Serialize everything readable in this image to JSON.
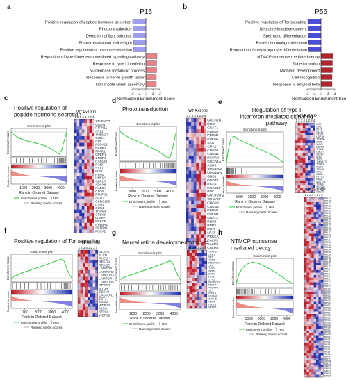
{
  "panels": [
    {
      "letter": "a"
    },
    {
      "letter": "b"
    },
    {
      "letter": "c"
    },
    {
      "letter": "d"
    },
    {
      "letter": "e"
    },
    {
      "letter": "f"
    },
    {
      "letter": "g"
    },
    {
      "letter": "h"
    }
  ],
  "colors": {
    "neg_bar": "#9f9ff0",
    "neg_bar_b": "#4a4fd6",
    "pos_bar": "#e8838a",
    "pos_bar_b": "#b3242c",
    "es_line": "#2ecc40",
    "heat_red": "#c01f2a",
    "heat_blue": "#2434b0",
    "heat_white": "#f2dfe6",
    "metric_pos": "#e77a6e",
    "metric_neg": "#6a6ad8"
  },
  "chart_data": [
    {
      "panel": "a",
      "type": "bar",
      "orientation": "horizontal",
      "title": "P15",
      "xlabel": "Normalized Enrichment Score",
      "xlim": [
        -2,
        2
      ],
      "xticks": [
        -2,
        -1,
        0,
        1,
        2
      ],
      "categories": [
        "Positive regulation of peptide hormone secretion",
        "Phototransduction",
        "Detection of light stimulus",
        "Phototransduction visible light",
        "Positive regulation of hormone secretion",
        "Regulation of type I interferon mediated signaling pathway",
        "Response to type I interferon",
        "Nucleobase metabolic process",
        "Response to nerve growth factor",
        "Non motile cilium assembly"
      ],
      "values": [
        -1.9,
        -1.85,
        -1.85,
        -1.8,
        -1.8,
        1.6,
        1.55,
        1.55,
        1.5,
        1.5
      ]
    },
    {
      "panel": "b",
      "type": "bar",
      "orientation": "horizontal",
      "title": "P56",
      "xlabel": "Normalized Enrichment Score",
      "xlim": [
        -2,
        2
      ],
      "xticks": [
        -2,
        -1,
        0,
        1,
        2
      ],
      "categories": [
        "Positive regulation of Tor signaling",
        "Neural retina development",
        "Spermatid differentiation",
        "Protein homooligomerization",
        "Regulation of megakaryocyte differentiation",
        "NTMCP nonsense mediated decay",
        "Tube formation",
        "Midbrain development",
        "Cell recognition",
        "Response to amyloid beta"
      ],
      "values": [
        -1.9,
        -1.85,
        -1.85,
        -1.8,
        -1.8,
        1.7,
        1.65,
        1.65,
        1.6,
        1.6
      ]
    },
    {
      "panel": "c",
      "type": "line",
      "title": "Positive regulation of peptide hormone secretion",
      "plot_title": "Enrichment plot",
      "ylabel_top": "Enrichment Score",
      "ylabel_bottom": "Ranked list metric",
      "xlabel": "Rank in Ordered Dataset",
      "xticks": [
        1000,
        2000,
        3000,
        4000
      ],
      "xlim": [
        0,
        4500
      ],
      "ylim": [
        -0.7,
        0.1
      ],
      "shape": "neg",
      "es_curve": [
        [
          0,
          0
        ],
        [
          300,
          -0.1
        ],
        [
          700,
          -0.18
        ],
        [
          1200,
          -0.25
        ],
        [
          1800,
          -0.3
        ],
        [
          2400,
          -0.36
        ],
        [
          2900,
          -0.42
        ],
        [
          3300,
          -0.5
        ],
        [
          3700,
          -0.6
        ],
        [
          3900,
          -0.64
        ],
        [
          4100,
          -0.52
        ],
        [
          4300,
          -0.25
        ],
        [
          4500,
          0
        ]
      ],
      "hits": [
        150,
        420,
        760,
        980,
        1210,
        1480,
        1700,
        1950,
        2200,
        2440,
        2650,
        2860,
        3050,
        3230,
        3390,
        3520,
        3630,
        3730,
        3820,
        3900,
        3960,
        4020,
        4080,
        4140,
        4200,
        4260,
        4330,
        4400
      ],
      "legend": [
        "Enrichment profile",
        "Hits",
        "Ranking metric scores"
      ],
      "heatmap": {
        "groups": [
          "WT",
          "Rx1 KO"
        ],
        "sample_numbers": [
          "1",
          "2",
          "3",
          "4",
          "1",
          "2",
          "3",
          "4"
        ],
        "genes": [
          "SELENOT",
          "GATA1",
          "PTPN11",
          "ARL2",
          "TMEM27",
          "CHGA",
          "GIP",
          "ABCA12",
          "NADK2",
          "FFAR1",
          "GPER1",
          "CRHR2",
          "RAB11B",
          "PIM3",
          "SYT7",
          "IRS2",
          "RFX6",
          "HNF1A",
          "GLP1R",
          "ADCY8",
          "RAB8A",
          "CD38",
          "PFKFB2",
          "SIDT2",
          "CCDC186",
          "ITPR1",
          "SOX4",
          "TRPM4",
          "CPLX3",
          "FFAR2",
          "PRKCE",
          "RPH3AL",
          "SPTBN1",
          "FOXA2"
        ],
        "rows": 34,
        "cols": 8
      }
    },
    {
      "panel": "d",
      "type": "line",
      "title": "Phototransduction",
      "plot_title": "Enrichment plot",
      "ylabel_top": "Enrichment Score",
      "ylabel_bottom": "Ranked list metric",
      "xlabel": "Rank in Ordered Dataset",
      "xticks": [
        1000,
        2000,
        3000,
        4000
      ],
      "xlim": [
        0,
        4500
      ],
      "ylim": [
        -0.7,
        0.1
      ],
      "shape": "neg",
      "es_curve": [
        [
          0,
          0
        ],
        [
          300,
          -0.08
        ],
        [
          800,
          -0.16
        ],
        [
          1400,
          -0.24
        ],
        [
          2000,
          -0.32
        ],
        [
          2600,
          -0.4
        ],
        [
          3100,
          -0.48
        ],
        [
          3500,
          -0.56
        ],
        [
          3800,
          -0.62
        ],
        [
          4000,
          -0.6
        ],
        [
          4200,
          -0.4
        ],
        [
          4400,
          -0.12
        ],
        [
          4500,
          0
        ]
      ],
      "hits": [
        200,
        500,
        900,
        1300,
        1600,
        1900,
        2150,
        2400,
        2650,
        2850,
        3050,
        3250,
        3400,
        3550,
        3680,
        3790,
        3880,
        3950,
        4010,
        4070,
        4130,
        4190,
        4250,
        4320,
        4390
      ],
      "legend": [
        "Enrichment profile",
        "Hits",
        "Ranking metric scores"
      ],
      "heatmap": {
        "groups": [
          "WT",
          "Rx1 KO"
        ],
        "sample_numbers": [
          "1",
          "2",
          "3",
          "4",
          "1",
          "2",
          "3",
          "4"
        ],
        "genes": [
          "GUCA1B",
          "RHO",
          "GNAT1",
          "PDE6A",
          "PDE6B",
          "PDE6G",
          "SAG",
          "GRK1",
          "CNGA1",
          "CNGB1",
          "RCVRN",
          "GUCA1A",
          "ARR3",
          "OPN1SW",
          "OPN1MW",
          "GNB1",
          "GNGT1",
          "RGS9",
          "RGS9BP",
          "PDC",
          "GUCY2D",
          "GUCY2F",
          "CNGA3",
          "CNGB3",
          "PDE6C",
          "PDE6H",
          "GNAT2",
          "RDH8",
          "RBP3",
          "RGR",
          "LRAT",
          "PRKCA",
          "CALM1",
          "CALM2",
          "CALM3"
        ],
        "rows": 35,
        "cols": 8
      }
    },
    {
      "panel": "e",
      "type": "line",
      "title": "Regulation of type I interferon mediated signaling pathway",
      "plot_title": "Enrichment plot",
      "ylabel_top": "Enrichment Score",
      "ylabel_bottom": "Ranked list metric",
      "xlabel": "Rank in Ordered Dataset",
      "xticks": [
        1000,
        2000,
        3000,
        4000
      ],
      "xlim": [
        0,
        4500
      ],
      "ylim": [
        -0.1,
        0.7
      ],
      "shape": "pos",
      "es_curve": [
        [
          0,
          0
        ],
        [
          150,
          0.3
        ],
        [
          350,
          0.55
        ],
        [
          600,
          0.6
        ],
        [
          1000,
          0.52
        ],
        [
          1600,
          0.44
        ],
        [
          2200,
          0.36
        ],
        [
          2800,
          0.28
        ],
        [
          3400,
          0.2
        ],
        [
          3900,
          0.12
        ],
        [
          4500,
          0
        ]
      ],
      "hits": [
        20,
        60,
        100,
        140,
        180,
        220,
        270,
        330,
        400,
        480,
        560,
        700,
        900,
        1200,
        1600
      ],
      "legend": [
        "Enrichment profile",
        "Hits",
        "Ranking metric scores"
      ],
      "heatmap": {
        "groups": [
          "WT",
          "Rx1 KO"
        ],
        "sample_numbers": [
          "1",
          "2",
          "3",
          "4",
          "1",
          "2",
          "3",
          "4"
        ],
        "genes": [
          "IRF7",
          "OAS1",
          "IFIT3",
          "ISG15",
          "STAT1",
          "USP18",
          "TRIM56",
          "IFIH1",
          "MAVS",
          "DDX58",
          "TRIM6",
          "CNOT7",
          "STAT2",
          "IRF3",
          "TBK1",
          "TMEM173",
          "TRAF3",
          "IKBKE",
          "TTLL12",
          "OAS3",
          "ADAR",
          "PTPN2",
          "FADD",
          "METTL3",
          "TRIM41",
          "STAT1B",
          "YTHDF2",
          "SOCS1"
        ],
        "rows": 28,
        "cols": 8
      }
    },
    {
      "panel": "f",
      "type": "line",
      "title": "Positive regulation of Tor signaling",
      "plot_title": "Enrichment plot",
      "ylabel_top": "Enrichment Score",
      "ylabel_bottom": "Ranked list metric",
      "xlabel": "Rank in Ordered Dataset",
      "xticks": [
        1000,
        2000,
        3000,
        4000
      ],
      "xlim": [
        0,
        4500
      ],
      "ylim": [
        -0.1,
        0.7
      ],
      "shape": "pos_late",
      "es_curve": [
        [
          0,
          0
        ],
        [
          300,
          0.08
        ],
        [
          800,
          0.16
        ],
        [
          1400,
          0.24
        ],
        [
          2000,
          0.32
        ],
        [
          2600,
          0.4
        ],
        [
          3000,
          0.46
        ],
        [
          3400,
          0.52
        ],
        [
          3700,
          0.56
        ],
        [
          3900,
          0.5
        ],
        [
          4100,
          0.28
        ],
        [
          4300,
          0.1
        ],
        [
          4500,
          0
        ]
      ],
      "hits": [
        100,
        400,
        700,
        1000,
        1300,
        1600,
        1900,
        2200,
        2450,
        2700,
        2900,
        3100,
        3280,
        3450,
        3600,
        3720,
        3830,
        3920,
        4000,
        4080,
        4160,
        4250,
        4350
      ],
      "legend": [
        "Enrichment profile",
        "Hits",
        "Ranking metric scores"
      ],
      "heatmap": {
        "groups": [
          "WT",
          "Rx1 KO"
        ],
        "sample_numbers": [
          "1",
          "2",
          "3",
          "4",
          "1",
          "2",
          "3",
          "4"
        ],
        "genes": [
          "MLST8",
          "FLCN",
          "RHEB",
          "RRAGA",
          "RRAGC",
          "LAMTOR1",
          "LAMTOR2",
          "LAMTOR3",
          "LAMTOR4",
          "LAMTOR5",
          "RPTOR",
          "MTOR",
          "SESN2",
          "CASTOR1",
          "SZT2",
          "KICS2",
          "WDR24",
          "MIOS",
          "SEH1L",
          "WDR59"
        ],
        "rows": 20,
        "cols": 8
      }
    },
    {
      "panel": "g",
      "type": "line",
      "title": "Neural retina development",
      "plot_title": "Enrichment plot",
      "ylabel_top": "Enrichment Score",
      "ylabel_bottom": "Ranked list metric",
      "xlabel": "Rank in Ordered Dataset",
      "xticks": [
        1000,
        2000,
        3000,
        4000
      ],
      "xlim": [
        0,
        4500
      ],
      "ylim": [
        -0.1,
        0.7
      ],
      "shape": "pos_late",
      "es_curve": [
        [
          0,
          0
        ],
        [
          300,
          0.07
        ],
        [
          800,
          0.14
        ],
        [
          1400,
          0.22
        ],
        [
          2000,
          0.3
        ],
        [
          2600,
          0.38
        ],
        [
          3000,
          0.44
        ],
        [
          3400,
          0.5
        ],
        [
          3700,
          0.55
        ],
        [
          3900,
          0.5
        ],
        [
          4100,
          0.3
        ],
        [
          4300,
          0.12
        ],
        [
          4500,
          0
        ]
      ],
      "hits": [
        120,
        380,
        650,
        900,
        1150,
        1420,
        1680,
        1950,
        2200,
        2450,
        2680,
        2880,
        3060,
        3230,
        3380,
        3510,
        3630,
        3740,
        3840,
        3930,
        4010,
        4090,
        4170,
        4260,
        4360
      ],
      "legend": [
        "Enrichment profile",
        "Hits",
        "Ranking metric scores"
      ],
      "heatmap": {
        "groups": [
          "WT",
          "Rx1 KO"
        ],
        "sample_numbers": [
          "1",
          "2",
          "3",
          "4",
          "1",
          "2",
          "3",
          "4"
        ],
        "genes": [
          "PRPH2",
          "CRB1",
          "NRL",
          "RORB",
          "SMARCA4",
          "CRX",
          "LHX2",
          "PAX6",
          "SOX2",
          "VSX2",
          "OTX2",
          "NEUROD1",
          "ATOH7",
          "POU4F2",
          "ISL1",
          "PTF1A",
          "FOXN4",
          "MATH5",
          "RBP4",
          "TULP1",
          "RPE65"
        ],
        "rows": 21,
        "cols": 8
      }
    },
    {
      "panel": "h",
      "type": "line",
      "title": "NTMCP nonsense mediated decay",
      "plot_title": "Enrichment plot",
      "ylabel_top": "Enrichment Score",
      "ylabel_bottom": "Ranked list metric",
      "xlabel": "Rank in Ordered Dataset",
      "xticks": [
        1000,
        2000,
        3000,
        4000
      ],
      "xlim": [
        0,
        4500
      ],
      "ylim": [
        -0.1,
        0.7
      ],
      "shape": "pos",
      "es_curve": [
        [
          0,
          0
        ],
        [
          200,
          0.25
        ],
        [
          500,
          0.45
        ],
        [
          900,
          0.55
        ],
        [
          1300,
          0.6
        ],
        [
          1800,
          0.56
        ],
        [
          2400,
          0.46
        ],
        [
          3000,
          0.34
        ],
        [
          3600,
          0.2
        ],
        [
          4100,
          0.08
        ],
        [
          4500,
          0
        ]
      ],
      "hits": [
        30,
        80,
        130,
        190,
        250,
        320,
        390,
        470,
        550,
        640,
        730,
        830,
        930,
        1040,
        1160,
        1290,
        1430,
        1580,
        1740,
        1920,
        2110,
        2320,
        2550,
        2800,
        3080,
        3400
      ],
      "legend": [
        "Enrichment profile",
        "Hits",
        "Ranking metric scores"
      ],
      "heatmap": {
        "groups": [
          "WT",
          "Rx1 KO"
        ],
        "sample_numbers": [
          "1",
          "2",
          "3",
          "4",
          "1",
          "2",
          "3",
          "4"
        ],
        "genes": [
          "RPL10",
          "RPL11",
          "RPL12",
          "RPL13",
          "RPL14",
          "RPL15",
          "RPL17",
          "RPL18",
          "RPL19",
          "RPL21",
          "RPL22",
          "RPL23",
          "RPL24",
          "RPL26",
          "RPL27",
          "RPL28",
          "RPL29",
          "RPL3",
          "RPL30",
          "RPL31",
          "RPL32",
          "RPL34",
          "RPL35",
          "RPL36",
          "RPL37",
          "RPL38",
          "RPL39",
          "RPL4",
          "RPL41",
          "RPL5",
          "RPL6",
          "RPL7",
          "RPL8",
          "RPL9",
          "RPLP0",
          "RPLP1",
          "RPLP2",
          "RPS10",
          "RPS11",
          "RPS12",
          "RPS13",
          "RPS14",
          "RPS15",
          "RPS16",
          "RPS17",
          "RPS18",
          "RPS19",
          "RPS2",
          "RPS20",
          "RPS21",
          "RPS23",
          "RPS24",
          "RPS25",
          "RPS26",
          "RPS27",
          "RPS28",
          "RPS29",
          "RPS3",
          "RPS4X",
          "RPS5",
          "RPS6",
          "RPS7",
          "RPS8",
          "RPS9",
          "RPSA",
          "UPF1",
          "UPF2",
          "UPF3B",
          "SMG1",
          "SMG5",
          "SMG6",
          "SMG7",
          "SMG8",
          "SMG9"
        ],
        "rows": 74,
        "cols": 8
      }
    }
  ]
}
